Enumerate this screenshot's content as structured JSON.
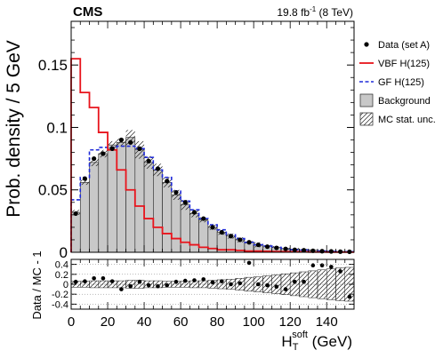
{
  "header": {
    "experiment": "CMS",
    "lumi_value": "19.8 fb",
    "lumi_exp": "-1",
    "lumi_energy": " (8 TeV)"
  },
  "colors": {
    "data": "#000000",
    "vbf": "#e8141c",
    "gf": "#1f2bd9",
    "background": "#c8c8c8"
  },
  "chart_data": [
    {
      "type": "histogram",
      "panel": "main",
      "ylabel": "Prob. density / 5 GeV",
      "xlim": [
        0,
        155
      ],
      "ylim": [
        0,
        0.185
      ],
      "yticks": [
        0,
        0.05,
        0.1,
        0.15
      ],
      "yticklabels": [
        "0",
        "0.05",
        "0.1",
        "0.15"
      ],
      "bin_edges": [
        0,
        5,
        10,
        15,
        20,
        25,
        30,
        35,
        40,
        45,
        50,
        55,
        60,
        65,
        70,
        75,
        80,
        85,
        90,
        95,
        100,
        105,
        110,
        115,
        120,
        125,
        130,
        135,
        140,
        145,
        150,
        155
      ],
      "legend_position": "top-right",
      "legend": [
        {
          "label": "Data (set A)",
          "style": "marker"
        },
        {
          "label": "VBF H(125)",
          "style": "red-line"
        },
        {
          "label": "GF H(125)",
          "style": "blue-dashed"
        },
        {
          "label": "Background",
          "style": "grey-box"
        },
        {
          "label": "MC stat. unc.",
          "style": "hatched-box"
        }
      ],
      "series": [
        {
          "name": "Background",
          "values": [
            0.032,
            0.056,
            0.072,
            0.079,
            0.086,
            0.088,
            0.092,
            0.082,
            0.072,
            0.066,
            0.056,
            0.046,
            0.038,
            0.031,
            0.026,
            0.02,
            0.016,
            0.013,
            0.01,
            0.008,
            0.006,
            0.005,
            0.004,
            0.003,
            0.0025,
            0.002,
            0.0016,
            0.0012,
            0.0009,
            0.0007,
            0.0005
          ]
        },
        {
          "name": "MC stat. unc. (abs)",
          "values": [
            0.002,
            0.002,
            0.003,
            0.003,
            0.003,
            0.003,
            0.006,
            0.007,
            0.005,
            0.005,
            0.004,
            0.004,
            0.004,
            0.003,
            0.002,
            0.002,
            0.002,
            0.002,
            0.002,
            0.001,
            0.002,
            0.001,
            0.001,
            0.001,
            0.001,
            0.0007,
            0.0006,
            0.0005,
            0.0004,
            0.0003,
            0.0002
          ]
        },
        {
          "name": "VBF H(125)",
          "values": [
            0.155,
            0.128,
            0.116,
            0.096,
            0.082,
            0.066,
            0.05,
            0.037,
            0.027,
            0.02,
            0.015,
            0.011,
            0.008,
            0.006,
            0.004,
            0.003,
            0.002,
            0.002,
            0.0015,
            0.001,
            0.001,
            0.0008,
            0.0006,
            0.0005,
            0.0004,
            0.0003,
            0.0002,
            0.0002,
            0.0001,
            0.0001,
            0.0001
          ]
        },
        {
          "name": "GF H(125)",
          "values": [
            0.042,
            0.06,
            0.082,
            0.084,
            0.084,
            0.085,
            0.085,
            0.083,
            0.076,
            0.066,
            0.06,
            0.049,
            0.041,
            0.034,
            0.027,
            0.022,
            0.018,
            0.014,
            0.011,
            0.008,
            0.006,
            0.005,
            0.004,
            0.003,
            0.002,
            0.0018,
            0.0014,
            0.001,
            0.0008,
            0.0006,
            0.0005
          ]
        },
        {
          "name": "Data (set A)",
          "values": [
            0.031,
            0.059,
            0.075,
            0.079,
            0.083,
            0.09,
            0.088,
            0.083,
            0.073,
            0.067,
            0.057,
            0.048,
            0.04,
            0.032,
            0.027,
            0.02,
            0.016,
            0.013,
            0.01,
            0.008,
            0.006,
            0.0045,
            0.0035,
            0.0027,
            0.002,
            0.0016,
            0.0012,
            0.0009,
            0.0007,
            0.0005,
            0.0004
          ]
        }
      ]
    },
    {
      "type": "scatter",
      "panel": "ratio",
      "ylabel": "Data / MC - 1",
      "xlabel_main": "H",
      "xlabel_sub": "T",
      "xlabel_sup": "soft",
      "xlabel_unit": " (GeV)",
      "xlim": [
        0,
        155
      ],
      "ylim": [
        -0.5,
        0.5
      ],
      "xticks": [
        0,
        20,
        40,
        60,
        80,
        100,
        120,
        140
      ],
      "xticklabels": [
        "0",
        "20",
        "40",
        "60",
        "80",
        "100",
        "120",
        "140"
      ],
      "yticks": [
        -0.4,
        -0.2,
        0,
        0.2,
        0.4
      ],
      "yticklabels": [
        "-0.4",
        "-0.2",
        "0",
        "0.2",
        "0.4"
      ],
      "ratio_values": [
        0.05,
        0.06,
        0.12,
        0.12,
        0.06,
        -0.1,
        -0.04,
        0.05,
        -0.02,
        -0.04,
        -0.02,
        0.05,
        0.07,
        0.08,
        0.1,
        0.04,
        0.06,
        0.0,
        0.02,
        0.43,
        0.0,
        -0.02,
        -0.05,
        -0.1,
        0.05,
        0.05,
        0.38,
        0.38,
        0.35,
        0.26,
        -0.25
      ],
      "unc_band": [
        0.06,
        0.06,
        0.07,
        0.07,
        0.07,
        0.07,
        0.08,
        0.08,
        0.07,
        0.07,
        0.06,
        0.06,
        0.06,
        0.07,
        0.07,
        0.08,
        0.09,
        0.1,
        0.12,
        0.14,
        0.15,
        0.17,
        0.19,
        0.21,
        0.23,
        0.25,
        0.27,
        0.29,
        0.31,
        0.33,
        0.34
      ]
    }
  ]
}
